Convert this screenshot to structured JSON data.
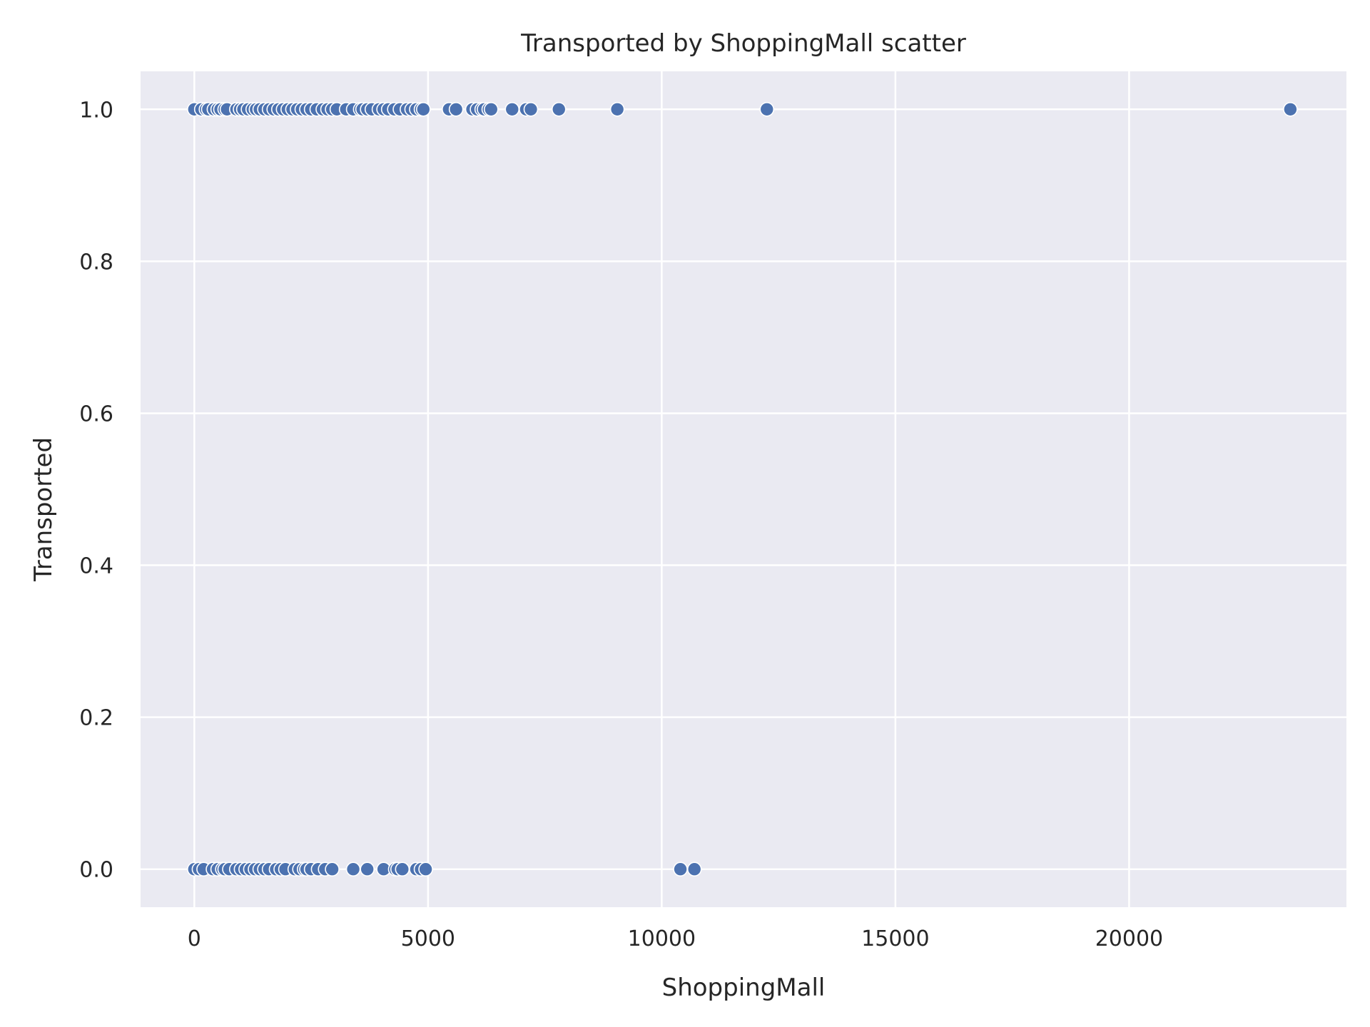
{
  "chart_data": {
    "type": "scatter",
    "title": "Transported by ShoppingMall scatter",
    "xlabel": "ShoppingMall",
    "ylabel": "Transported",
    "xlim": [
      -1150,
      24650
    ],
    "ylim": [
      -0.05,
      1.05
    ],
    "xticks": [
      0,
      5000,
      10000,
      15000,
      20000
    ],
    "xtick_labels": [
      "0",
      "5000",
      "10000",
      "15000",
      "20000"
    ],
    "yticks": [
      0.0,
      0.2,
      0.4,
      0.6,
      0.8,
      1.0
    ],
    "ytick_labels": [
      "0.0",
      "0.2",
      "0.4",
      "0.6",
      "0.8",
      "1.0"
    ],
    "grid": true,
    "legend": "none",
    "colors": {
      "background": "#eaeaf2",
      "grid": "#ffffff",
      "marker": "#4c72b0",
      "marker_edge": "#ffffff"
    },
    "series": [
      {
        "values_x": [
          0,
          150,
          250,
          300,
          420,
          500,
          560,
          650,
          700,
          900,
          980,
          1050,
          1150,
          1250,
          1320,
          1400,
          1500,
          1600,
          1700,
          1800,
          1900,
          2000,
          2100,
          2200,
          2300,
          2400,
          2500,
          2620,
          2750,
          2850,
          2950,
          3050,
          3250,
          3400,
          3550,
          3600,
          3700,
          3800,
          3950,
          4050,
          4150,
          4280,
          4400,
          4550,
          4650,
          4750,
          4850,
          4900,
          5450,
          5600,
          5950,
          6050,
          6150,
          6200,
          6300,
          6350,
          6800,
          7100,
          7200,
          7800,
          9050,
          12250,
          23450
        ],
        "values_y": [
          1,
          1,
          1,
          1,
          1,
          1,
          1,
          1,
          1,
          1,
          1,
          1,
          1,
          1,
          1,
          1,
          1,
          1,
          1,
          1,
          1,
          1,
          1,
          1,
          1,
          1,
          1,
          1,
          1,
          1,
          1,
          1,
          1,
          1,
          1,
          1,
          1,
          1,
          1,
          1,
          1,
          1,
          1,
          1,
          1,
          1,
          1,
          1,
          1,
          1,
          1,
          1,
          1,
          1,
          1,
          1,
          1,
          1,
          1,
          1,
          1,
          1,
          1
        ]
      },
      {
        "values_x": [
          0,
          100,
          200,
          400,
          500,
          600,
          650,
          750,
          900,
          1000,
          1100,
          1200,
          1300,
          1400,
          1500,
          1600,
          1750,
          1850,
          1950,
          2150,
          2250,
          2350,
          2400,
          2500,
          2650,
          2800,
          2950,
          3400,
          3700,
          4050,
          4300,
          4350,
          4450,
          4750,
          4850,
          4950,
          10400,
          10700
        ],
        "values_y": [
          0,
          0,
          0,
          0,
          0,
          0,
          0,
          0,
          0,
          0,
          0,
          0,
          0,
          0,
          0,
          0,
          0,
          0,
          0,
          0,
          0,
          0,
          0,
          0,
          0,
          0,
          0,
          0,
          0,
          0,
          0,
          0,
          0,
          0,
          0,
          0,
          0,
          0
        ]
      }
    ]
  }
}
